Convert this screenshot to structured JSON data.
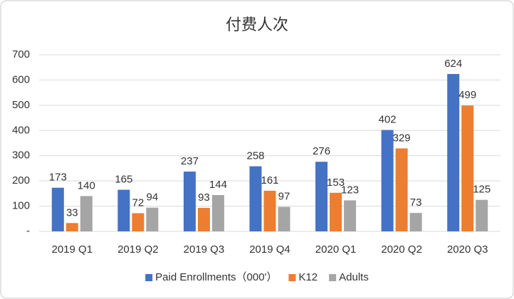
{
  "chart_data": {
    "type": "bar",
    "title": "付费人次",
    "categories": [
      "2019 Q1",
      "2019 Q2",
      "2019 Q3",
      "2019 Q4",
      "2020 Q1",
      "2020 Q2",
      "2020 Q3"
    ],
    "series": [
      {
        "name": "Paid Enrollments（000'）",
        "color": "#4472c4",
        "values": [
          173,
          165,
          237,
          258,
          276,
          402,
          624
        ]
      },
      {
        "name": "K12",
        "color": "#ed7d31",
        "values": [
          33,
          72,
          93,
          161,
          153,
          329,
          499
        ]
      },
      {
        "name": "Adults",
        "color": "#a5a5a5",
        "values": [
          140,
          94,
          144,
          97,
          123,
          73,
          125
        ]
      }
    ],
    "ylim": [
      0,
      700
    ],
    "yticks": [
      {
        "value": 0,
        "label": "-"
      },
      100,
      200,
      300,
      400,
      500,
      600,
      700
    ],
    "grid": true,
    "legend": "bottom"
  }
}
